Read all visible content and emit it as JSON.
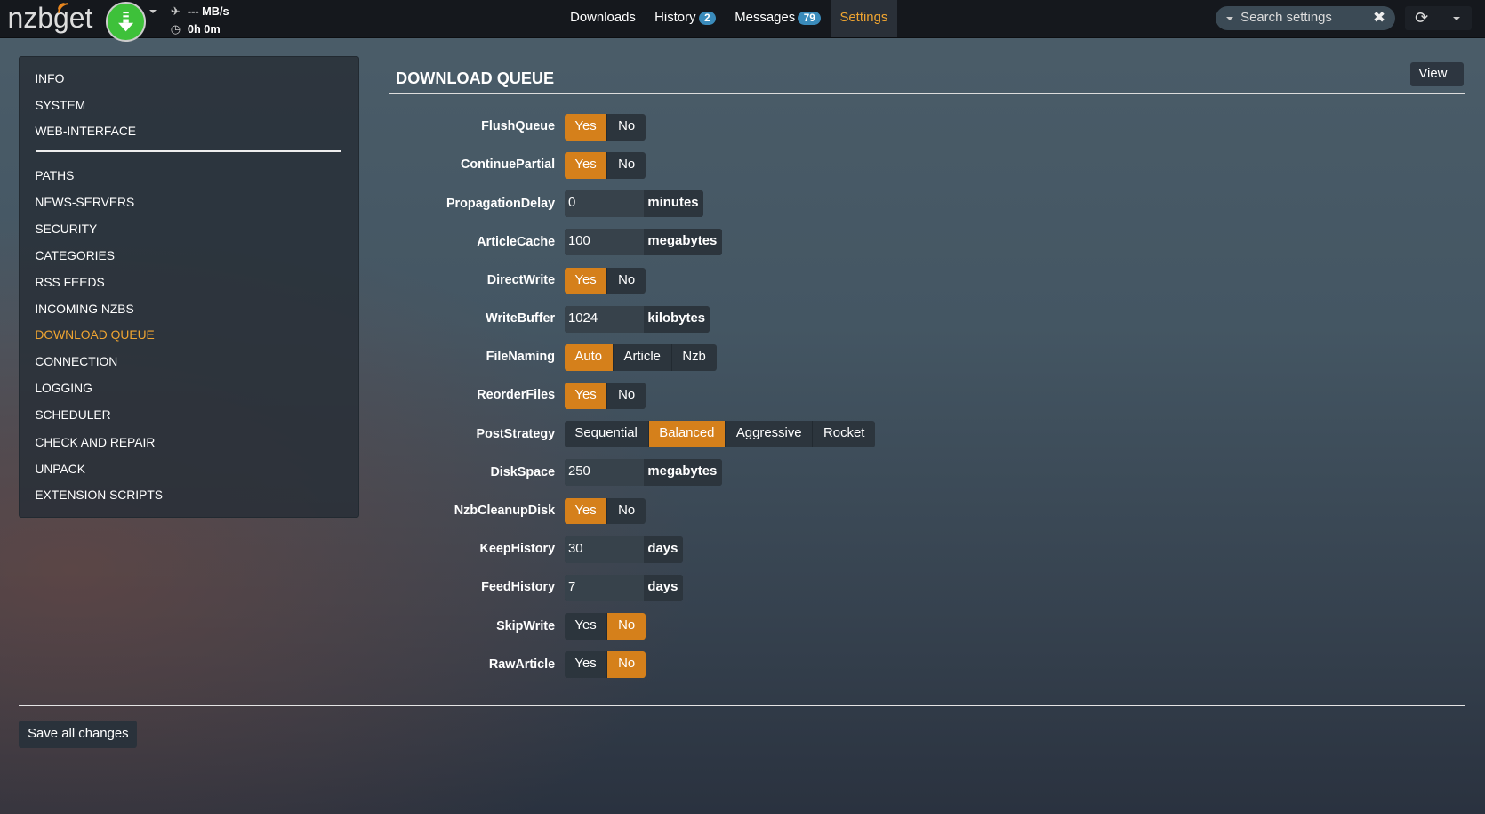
{
  "header": {
    "logo": "nzbget",
    "speed": "--- MB/s",
    "time": "0h 0m",
    "nav": [
      {
        "label": "Downloads"
      },
      {
        "label": "History",
        "badge": "2"
      },
      {
        "label": "Messages",
        "badge": "79"
      },
      {
        "label": "Settings",
        "active": true
      }
    ],
    "search_placeholder": "Search settings"
  },
  "sidebar": {
    "items": [
      "INFO",
      "SYSTEM",
      "WEB-INTERFACE",
      "PATHS",
      "NEWS-SERVERS",
      "SECURITY",
      "CATEGORIES",
      "RSS FEEDS",
      "INCOMING NZBS",
      "DOWNLOAD QUEUE",
      "CONNECTION",
      "LOGGING",
      "SCHEDULER",
      "CHECK AND REPAIR",
      "UNPACK",
      "EXTENSION SCRIPTS"
    ],
    "active": "DOWNLOAD QUEUE"
  },
  "section": {
    "title": "DOWNLOAD QUEUE",
    "view_label": "View"
  },
  "settings": [
    {
      "name": "FlushQueue",
      "type": "toggle",
      "options": [
        "Yes",
        "No"
      ],
      "selected": "Yes"
    },
    {
      "name": "ContinuePartial",
      "type": "toggle",
      "options": [
        "Yes",
        "No"
      ],
      "selected": "Yes"
    },
    {
      "name": "PropagationDelay",
      "type": "input",
      "value": "0",
      "unit": "minutes"
    },
    {
      "name": "ArticleCache",
      "type": "input",
      "value": "100",
      "unit": "megabytes"
    },
    {
      "name": "DirectWrite",
      "type": "toggle",
      "options": [
        "Yes",
        "No"
      ],
      "selected": "Yes"
    },
    {
      "name": "WriteBuffer",
      "type": "input",
      "value": "1024",
      "unit": "kilobytes"
    },
    {
      "name": "FileNaming",
      "type": "toggle",
      "options": [
        "Auto",
        "Article",
        "Nzb"
      ],
      "selected": "Auto"
    },
    {
      "name": "ReorderFiles",
      "type": "toggle",
      "options": [
        "Yes",
        "No"
      ],
      "selected": "Yes"
    },
    {
      "name": "PostStrategy",
      "type": "toggle",
      "options": [
        "Sequential",
        "Balanced",
        "Aggressive",
        "Rocket"
      ],
      "selected": "Balanced"
    },
    {
      "name": "DiskSpace",
      "type": "input",
      "value": "250",
      "unit": "megabytes"
    },
    {
      "name": "NzbCleanupDisk",
      "type": "toggle",
      "options": [
        "Yes",
        "No"
      ],
      "selected": "Yes"
    },
    {
      "name": "KeepHistory",
      "type": "input",
      "value": "30",
      "unit": "days"
    },
    {
      "name": "FeedHistory",
      "type": "input",
      "value": "7",
      "unit": "days"
    },
    {
      "name": "SkipWrite",
      "type": "toggle",
      "options": [
        "Yes",
        "No"
      ],
      "selected": "No"
    },
    {
      "name": "RawArticle",
      "type": "toggle",
      "options": [
        "Yes",
        "No"
      ],
      "selected": "No"
    }
  ],
  "footer": {
    "save_label": "Save all changes"
  },
  "colors": {
    "accent": "#d5801b",
    "active_nav": "#f0a531",
    "badge": "#3a8bbb",
    "download_button": "#3ec13a"
  }
}
